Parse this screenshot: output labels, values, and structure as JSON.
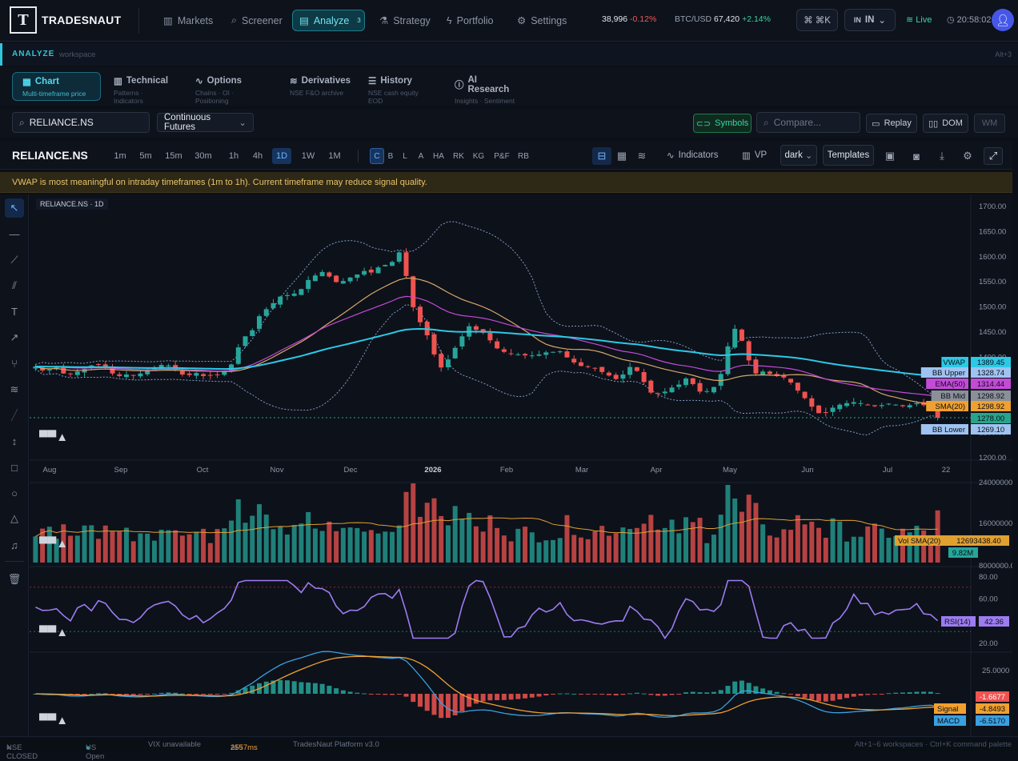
{
  "brand": {
    "logo_glyph": "T",
    "name": "TRADESNAUT"
  },
  "nav": {
    "items": [
      {
        "label": "Markets",
        "icon": "bar-chart-icon"
      },
      {
        "label": "Screener",
        "icon": "search-icon"
      },
      {
        "label": "Analyze",
        "icon": "chart-icon",
        "badge": "3"
      },
      {
        "label": "Strategy",
        "icon": "flask-icon"
      },
      {
        "label": "Portfolio",
        "icon": "lightning-icon"
      },
      {
        "label": "Settings",
        "icon": "gear-icon"
      }
    ],
    "index": {
      "value": "38,996",
      "change": "-0.12%"
    },
    "btc": {
      "label": "BTC/USD",
      "value": "67,420",
      "change": "+2.14%"
    },
    "cmdk": "⌘ ⌘K",
    "market": {
      "flag": "IN",
      "code": "IN"
    },
    "live": "Live",
    "time": "20:58:02"
  },
  "workspace": {
    "label": "ANALYZE",
    "sub": "workspace",
    "hint": "Alt+3"
  },
  "tabs": [
    {
      "title": "Chart",
      "sub": "Multi-timeframe price"
    },
    {
      "title": "Technical",
      "sub": "Patterns · Indicators"
    },
    {
      "title": "Options",
      "sub": "Chains · OI · Positioning"
    },
    {
      "title": "Derivatives",
      "sub": "NSE F&O archive"
    },
    {
      "title": "History",
      "sub": "NSE cash equity EOD"
    },
    {
      "title": "AI Research",
      "sub": "Insights · Sentiment"
    }
  ],
  "symbolbar": {
    "symbol": "RELIANCE.NS",
    "contract": "Continuous Futures",
    "symbols_btn": "Symbols",
    "compare_placeholder": "Compare...",
    "replay": "Replay",
    "dom": "DOM",
    "wm": "WM"
  },
  "toolbar": {
    "symbol": "RELIANCE.NS",
    "timeframes": [
      "1m",
      "5m",
      "15m",
      "30m",
      "1h",
      "4h",
      "1D",
      "1W",
      "1M"
    ],
    "active_tf": "1D",
    "chart_types": [
      "C",
      "B",
      "L",
      "A",
      "HA",
      "RK",
      "KG",
      "P&F",
      "RB"
    ],
    "active_type": "C",
    "indicators": "Indicators",
    "vp": "VP",
    "theme": "dark",
    "templates": "Templates"
  },
  "warning": "VWAP is most meaningful on intraday timeframes (1m to 1h). Current timeframe may reduce signal quality.",
  "chart_legend": "RELIANCE.NS · 1D",
  "chart_data": {
    "type": "line",
    "title": "RELIANCE.NS · 1D",
    "price_axis": [
      "1700.00",
      "1650.00",
      "1600.00",
      "1550.00",
      "1500.00",
      "1450.00",
      "1400.00",
      "1350.00",
      "1300.00",
      "1250.00",
      "1200.00"
    ],
    "x_labels": [
      "Aug",
      "Sep",
      "Oct",
      "Nov",
      "Dec",
      "2026",
      "Feb",
      "Mar",
      "Apr",
      "May",
      "Jun",
      "Jul",
      "22"
    ],
    "ylim": [
      1200,
      1700
    ],
    "close": [
      1380,
      1372,
      1374,
      1378,
      1366,
      1365,
      1370,
      1375,
      1382,
      1384,
      1378,
      1366,
      1361,
      1364,
      1362,
      1366,
      1372,
      1376,
      1383,
      1382,
      1373,
      1364,
      1363,
      1367,
      1361,
      1362,
      1363,
      1372,
      1384,
      1418,
      1440,
      1452,
      1480,
      1494,
      1506,
      1519,
      1522,
      1525,
      1534,
      1552,
      1561,
      1568,
      1559,
      1548,
      1550,
      1557,
      1563,
      1570,
      1567,
      1577,
      1582,
      1588,
      1607,
      1560,
      1498,
      1468,
      1442,
      1404,
      1378,
      1394,
      1417,
      1440,
      1460,
      1453,
      1447,
      1432,
      1416,
      1409,
      1406,
      1404,
      1402,
      1402,
      1404,
      1408,
      1409,
      1410,
      1398,
      1388,
      1381,
      1380,
      1377,
      1369,
      1362,
      1355,
      1364,
      1379,
      1371,
      1349,
      1328,
      1326,
      1330,
      1338,
      1344,
      1356,
      1345,
      1330,
      1331,
      1339,
      1365,
      1420,
      1455,
      1431,
      1392,
      1366,
      1370,
      1365,
      1361,
      1358,
      1348,
      1332,
      1317,
      1300,
      1287,
      1288,
      1298,
      1304,
      1307,
      1309,
      1307,
      1304,
      1301,
      1303,
      1306,
      1304,
      1301,
      1303,
      1307,
      1303,
      1299,
      1278
    ],
    "series_labels": [
      {
        "name": "VWAP",
        "value": "1389.45",
        "color": "#2cc9e6"
      },
      {
        "name": "BB Upper",
        "value": "1328.74",
        "color": "#9ec3f0"
      },
      {
        "name": "EMA(50)",
        "value": "1314.44",
        "color": "#c44ad8"
      },
      {
        "name": "BB Mid",
        "value": "1298.92",
        "color": "#8a8f99"
      },
      {
        "name": "SMA(20)",
        "value": "1298.92",
        "color": "#f0a030"
      },
      {
        "name": "",
        "value": "1278.00",
        "color": "#27a58a"
      },
      {
        "name": "BB Lower",
        "value": "1269.10",
        "color": "#9ec3f0"
      }
    ],
    "volume": {
      "axis": [
        "24000000.00",
        "16000000.00",
        "8000000.00"
      ],
      "sma_label": "Vol SMA(20)",
      "sma_value": "12693438.40",
      "last": "9.82M"
    },
    "rsi": {
      "axis": [
        "80.00",
        "60.00",
        "40.00",
        "20.00"
      ],
      "label": "RSI(14)",
      "value": "42.36"
    },
    "macd": {
      "axis": [
        "25.0000"
      ],
      "hist": "-1.6677",
      "signal_label": "Signal",
      "signal": "-4.8493",
      "macd_label": "MACD",
      "macd": "-6.5170"
    },
    "colors": {
      "up": "#26a69a",
      "down": "#ef5350",
      "vwap": "#2cc9e6",
      "bb": "#9ec3f0",
      "ema": "#c44ad8",
      "sma": "#d8a86a",
      "rsi": "#9c7cf0",
      "macd": "#3aa0e0",
      "signal": "#f0a030"
    }
  },
  "status": {
    "nse": "NSE CLOSED",
    "us": "US Open",
    "vix": "VIX unavailable",
    "api_label": "API",
    "api": "2557ms",
    "platform": "TradesNaut Platform v3.0",
    "hint": "Alt+1~6 workspaces · Ctrl+K command palette"
  }
}
